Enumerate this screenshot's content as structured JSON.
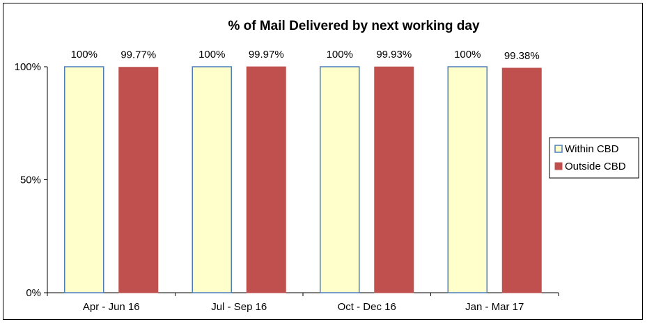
{
  "chart_data": {
    "type": "bar",
    "title": "% of Mail Delivered by next working day",
    "xlabel": "",
    "ylabel": "",
    "categories": [
      "Apr - Jun 16",
      "Jul - Sep 16",
      "Oct - Dec 16",
      "Jan - Mar 17"
    ],
    "ylim": [
      0,
      100
    ],
    "yticks": [
      0,
      50,
      100
    ],
    "ytick_labels": [
      "0%",
      "50%",
      "100%"
    ],
    "grid": false,
    "legend_position": "right",
    "series": [
      {
        "name": "Within CBD",
        "values": [
          100,
          100,
          100,
          100
        ],
        "labels": [
          "100%",
          "100%",
          "100%",
          "100%"
        ],
        "color": "#FFFFCC",
        "edge_color": "#4A7EBB"
      },
      {
        "name": "Outside CBD",
        "values": [
          99.77,
          99.97,
          99.93,
          99.38
        ],
        "labels": [
          "99.77%",
          "99.97%",
          "99.93%",
          "99.38%"
        ],
        "color": "#C0504D",
        "edge_color": "#C0504D"
      }
    ]
  }
}
